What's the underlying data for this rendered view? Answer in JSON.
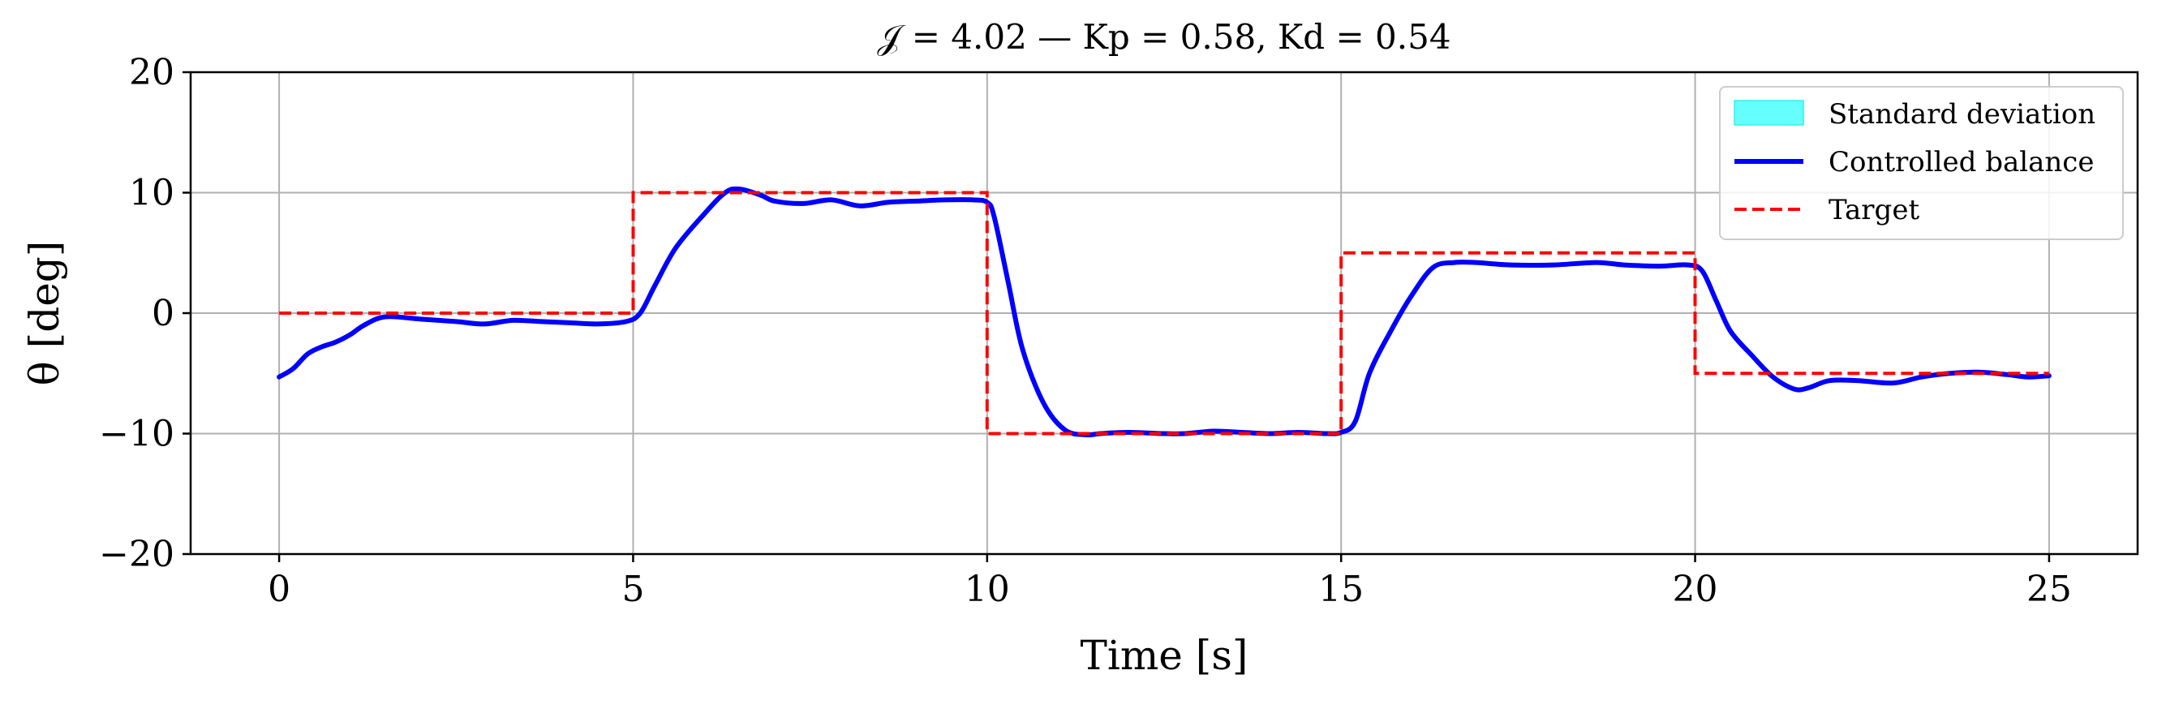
{
  "chart_data": {
    "type": "line",
    "title": "𝒥 = 4.02 — Kp = 0.58, Kd = 0.54",
    "xlabel": "Time [s]",
    "ylabel": "θ [deg]",
    "xlim": [
      -1.25,
      26.25
    ],
    "ylim": [
      -20,
      20
    ],
    "xticks": [
      0,
      5,
      10,
      15,
      20,
      25
    ],
    "yticks": [
      -20,
      -10,
      0,
      10,
      20
    ],
    "xtick_labels": [
      "0",
      "5",
      "10",
      "15",
      "20",
      "25"
    ],
    "ytick_labels": [
      "−20",
      "−10",
      "0",
      "10",
      "20"
    ],
    "grid": true,
    "legend_position": "top-right",
    "legend": [
      {
        "label": "Standard deviation",
        "kind": "patch",
        "color": "#66ffff"
      },
      {
        "label": "Controlled balance",
        "kind": "line",
        "color": "#0000ff"
      },
      {
        "label": "Target",
        "kind": "dashed-line",
        "color": "#ff0000"
      }
    ],
    "series": [
      {
        "name": "Controlled balance",
        "color": "#0000ff",
        "x": [
          0,
          0.2,
          0.4,
          0.6,
          0.8,
          1.0,
          1.2,
          1.5,
          2.0,
          2.5,
          2.9,
          3.3,
          3.7,
          4.1,
          4.5,
          4.9,
          5.1,
          5.3,
          5.6,
          6.0,
          6.3,
          6.5,
          6.8,
          7.0,
          7.4,
          7.8,
          8.2,
          8.6,
          9.0,
          9.4,
          9.8,
          10.0,
          10.1,
          10.3,
          10.5,
          10.8,
          11.1,
          11.4,
          11.6,
          12.0,
          12.5,
          12.8,
          13.2,
          13.6,
          14.0,
          14.4,
          14.8,
          15.0,
          15.2,
          15.4,
          15.7,
          16.0,
          16.3,
          16.6,
          16.9,
          17.4,
          18.0,
          18.6,
          19.0,
          19.5,
          19.9,
          20.1,
          20.3,
          20.5,
          20.8,
          21.1,
          21.4,
          21.6,
          21.9,
          22.3,
          22.8,
          23.2,
          23.6,
          24.0,
          24.4,
          24.7,
          25.0
        ],
        "values": [
          -5.3,
          -4.6,
          -3.4,
          -2.8,
          -2.4,
          -1.8,
          -1.0,
          -0.3,
          -0.5,
          -0.7,
          -0.9,
          -0.6,
          -0.7,
          -0.8,
          -0.9,
          -0.7,
          0.0,
          2.2,
          5.4,
          8.2,
          10.0,
          10.3,
          9.8,
          9.3,
          9.1,
          9.4,
          8.9,
          9.2,
          9.3,
          9.4,
          9.4,
          9.2,
          8.0,
          2.5,
          -3.0,
          -7.5,
          -9.7,
          -10.1,
          -10.0,
          -9.9,
          -10.0,
          -10.0,
          -9.8,
          -9.9,
          -10.0,
          -9.9,
          -10.0,
          -9.9,
          -9.0,
          -5.0,
          -1.5,
          1.5,
          3.8,
          4.2,
          4.2,
          4.0,
          4.0,
          4.2,
          4.0,
          3.9,
          4.0,
          3.5,
          1.0,
          -1.5,
          -3.5,
          -5.3,
          -6.3,
          -6.2,
          -5.6,
          -5.6,
          -5.8,
          -5.3,
          -5.0,
          -4.9,
          -5.1,
          -5.3,
          -5.2
        ]
      },
      {
        "name": "Target",
        "color": "#ff0000",
        "x": [
          0,
          5,
          5,
          10,
          10,
          15,
          15,
          20,
          20,
          25
        ],
        "values": [
          0,
          0,
          10,
          10,
          -10,
          -10,
          5,
          5,
          -5,
          -5
        ]
      }
    ]
  }
}
